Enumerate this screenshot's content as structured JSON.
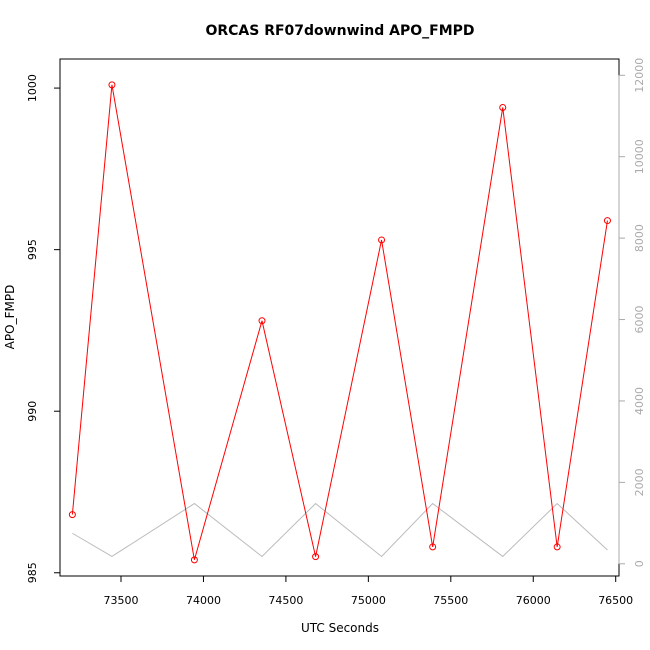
{
  "chart_data": {
    "type": "line",
    "title": "ORCAS RF07downwind APO_FMPD",
    "xlabel": "UTC Seconds",
    "ylabel": "APO_FMPD",
    "xlim": [
      73130,
      76520
    ],
    "ylim": [
      984.9,
      1000.9
    ],
    "y2lim": [
      -300,
      12400
    ],
    "x_ticks": [
      73500,
      74000,
      74500,
      75000,
      75500,
      76000,
      76500
    ],
    "y_ticks": [
      985,
      990,
      995,
      1000
    ],
    "y2_ticks": [
      0,
      2000,
      4000,
      6000,
      8000,
      10000,
      12000
    ],
    "grid": false,
    "legend": "none",
    "series": [
      {
        "axis": "left",
        "color": "#ff0000",
        "markers": true,
        "x": [
          73205,
          73445,
          73945,
          74355,
          74680,
          75080,
          75390,
          75815,
          76145,
          76450
        ],
        "y": [
          986.8,
          1000.1,
          985.4,
          992.8,
          985.5,
          995.3,
          985.8,
          999.4,
          985.8,
          995.9
        ]
      },
      {
        "axis": "right",
        "color": "#bbbbbb",
        "markers": false,
        "x": [
          73205,
          73445,
          73945,
          74355,
          74680,
          75080,
          75390,
          75815,
          76145,
          76450
        ],
        "y": [
          750,
          180,
          1480,
          180,
          1480,
          180,
          1480,
          180,
          1480,
          340
        ]
      }
    ]
  }
}
